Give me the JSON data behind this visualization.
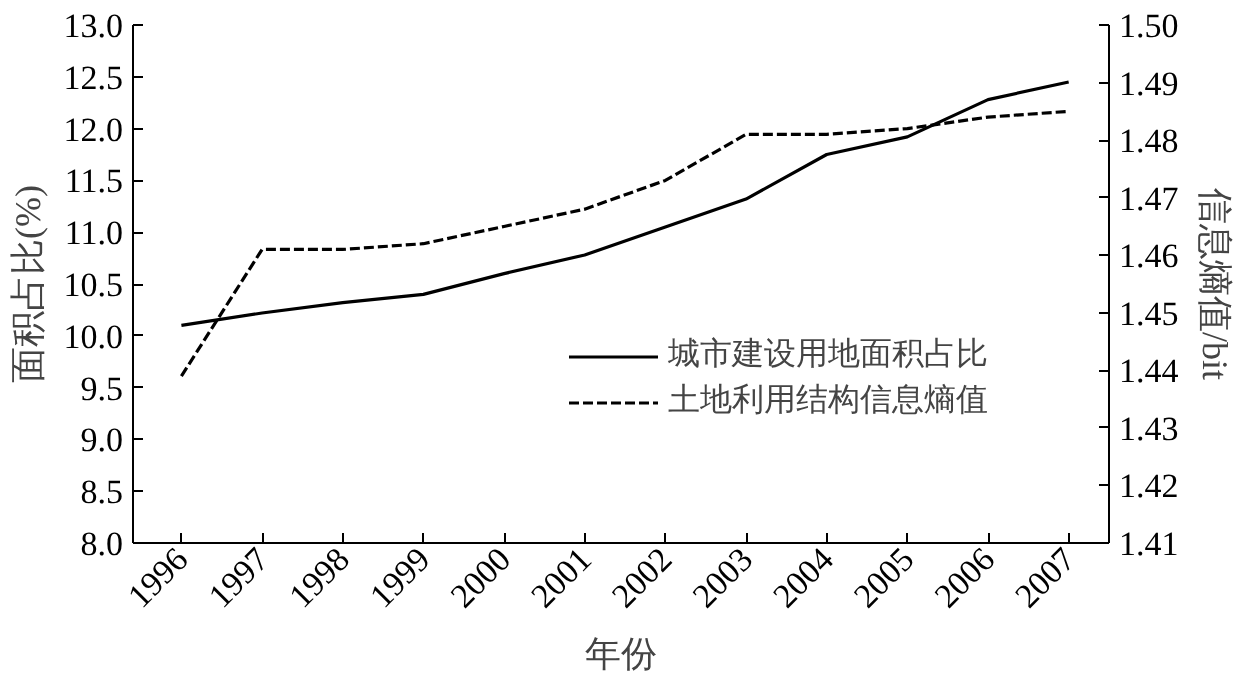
{
  "chart_data": {
    "type": "line",
    "xlabel": "年份",
    "ylabel": "面积占比(%)",
    "y2label": "信息熵值/bit",
    "x": [
      1996,
      1997,
      1998,
      1999,
      2000,
      2001,
      2002,
      2003,
      2004,
      2005,
      2006,
      2007
    ],
    "xlim": [
      1995.4,
      2007.5
    ],
    "xticks": [
      1996,
      1997,
      1998,
      1999,
      2000,
      2001,
      2002,
      2003,
      2004,
      2005,
      2006,
      2007
    ],
    "ylim": [
      8.0,
      13.0
    ],
    "yticks": [
      {
        "value": 8,
        "label": "8.0"
      },
      {
        "value": 8.5,
        "label": "8.5"
      },
      {
        "value": 9,
        "label": "9.0"
      },
      {
        "value": 9.5,
        "label": "9.5"
      },
      {
        "value": 10,
        "label": "10.0"
      },
      {
        "value": 10.5,
        "label": "10.5"
      },
      {
        "value": 11,
        "label": "11.0"
      },
      {
        "value": 11.5,
        "label": "11.5"
      },
      {
        "value": 12,
        "label": "12.0"
      },
      {
        "value": 12.5,
        "label": "12.5"
      },
      {
        "value": 13,
        "label": "13.0"
      }
    ],
    "y2lim": [
      1.41,
      1.5
    ],
    "y2ticks": [
      1.41,
      1.42,
      1.43,
      1.44,
      1.45,
      1.46,
      1.47,
      1.48,
      1.49,
      {
        "value": 1.5,
        "label": "1.50"
      }
    ],
    "grid": false,
    "legend": "bottom right",
    "series": [
      {
        "name": "城市建设用地面积占比",
        "color": "#000000",
        "line_style": "solid",
        "values": [
          10.1,
          10.22,
          10.32,
          10.4,
          10.6,
          10.78,
          11.05,
          11.32,
          11.75,
          11.92,
          12.28,
          12.45
        ]
      },
      {
        "name": "土地利用结构信息熵值",
        "color": "#000000",
        "line_style": "dashed",
        "axis": "y2",
        "values": [
          1.439,
          1.461,
          1.461,
          1.462,
          1.465,
          1.468,
          1.473,
          1.481,
          1.481,
          1.482,
          1.484,
          1.485
        ]
      }
    ]
  }
}
